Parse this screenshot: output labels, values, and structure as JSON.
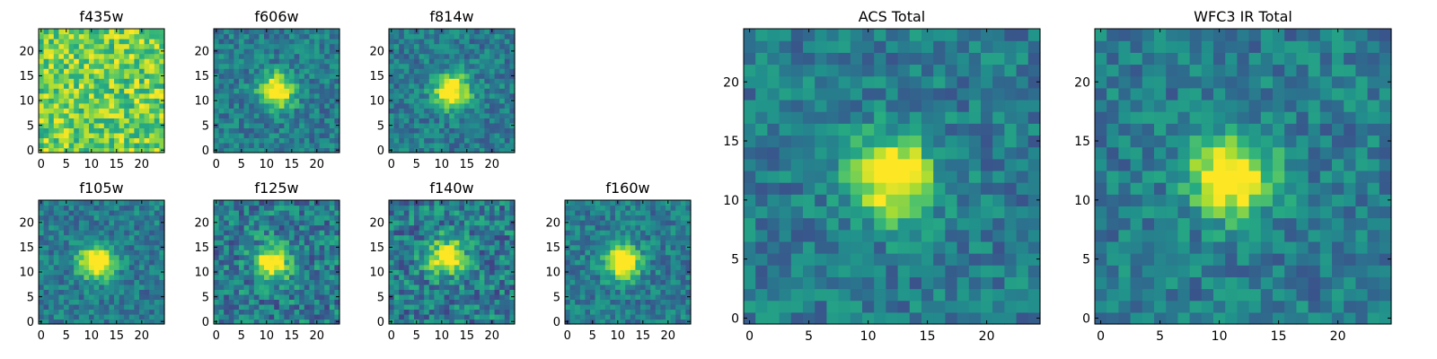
{
  "figure": {
    "colormap": "viridis",
    "colors": [
      "#440154",
      "#3b528b",
      "#21918c",
      "#5ec962",
      "#fde725"
    ],
    "frame_color": "#000000"
  },
  "chart_data": [
    {
      "type": "heatmap",
      "title": "f435w",
      "grid_size": 25,
      "xlim": [
        0,
        24
      ],
      "ylim": [
        0,
        24
      ],
      "xticks": [
        "0",
        "5",
        "10",
        "15",
        "20"
      ],
      "yticks": [
        "0",
        "5",
        "10",
        "15",
        "20"
      ],
      "grid": false,
      "source_center": null,
      "noise_level": "high",
      "note_visible": "mostly yellow-green noise"
    },
    {
      "type": "heatmap",
      "title": "f606w",
      "grid_size": 25,
      "xlim": [
        0,
        24
      ],
      "ylim": [
        0,
        24
      ],
      "xticks": [
        "0",
        "5",
        "10",
        "15",
        "20"
      ],
      "yticks": [
        "0",
        "5",
        "10",
        "15",
        "20"
      ],
      "grid": false,
      "source_center": [
        12,
        12
      ],
      "noise_level": "medium"
    },
    {
      "type": "heatmap",
      "title": "f814w",
      "grid_size": 25,
      "xlim": [
        0,
        24
      ],
      "ylim": [
        0,
        24
      ],
      "xticks": [
        "0",
        "5",
        "10",
        "15",
        "20"
      ],
      "yticks": [
        "0",
        "5",
        "10",
        "15",
        "20"
      ],
      "grid": false,
      "source_center": [
        12,
        12
      ],
      "noise_level": "medium"
    },
    {
      "type": "heatmap",
      "title": "f105w",
      "grid_size": 25,
      "xlim": [
        0,
        24
      ],
      "ylim": [
        0,
        24
      ],
      "xticks": [
        "0",
        "5",
        "10",
        "15",
        "20"
      ],
      "yticks": [
        "0",
        "5",
        "10",
        "15",
        "20"
      ],
      "grid": false,
      "source_center": [
        11,
        12
      ],
      "noise_level": "medium"
    },
    {
      "type": "heatmap",
      "title": "f125w",
      "grid_size": 25,
      "xlim": [
        0,
        24
      ],
      "ylim": [
        0,
        24
      ],
      "xticks": [
        "0",
        "5",
        "10",
        "15",
        "20"
      ],
      "yticks": [
        "0",
        "5",
        "10",
        "15",
        "20"
      ],
      "grid": false,
      "source_center": [
        11,
        12
      ],
      "noise_level": "high"
    },
    {
      "type": "heatmap",
      "title": "f140w",
      "grid_size": 25,
      "xlim": [
        0,
        24
      ],
      "ylim": [
        0,
        24
      ],
      "xticks": [
        "0",
        "5",
        "10",
        "15",
        "20"
      ],
      "yticks": [
        "0",
        "5",
        "10",
        "15",
        "20"
      ],
      "grid": false,
      "source_center": [
        11,
        13
      ],
      "noise_level": "high"
    },
    {
      "type": "heatmap",
      "title": "f160w",
      "grid_size": 25,
      "xlim": [
        0,
        24
      ],
      "ylim": [
        0,
        24
      ],
      "xticks": [
        "0",
        "5",
        "10",
        "15",
        "20"
      ],
      "yticks": [
        "0",
        "5",
        "10",
        "15",
        "20"
      ],
      "grid": false,
      "source_center": [
        11,
        12
      ],
      "noise_level": "medium"
    },
    {
      "type": "heatmap",
      "title": "ACS Total",
      "grid_size": 25,
      "xlim": [
        0,
        24
      ],
      "ylim": [
        0,
        24
      ],
      "xticks": [
        "0",
        "5",
        "10",
        "15",
        "20"
      ],
      "yticks": [
        "0",
        "5",
        "10",
        "15",
        "20"
      ],
      "grid": false,
      "source_center": [
        12,
        12
      ],
      "noise_level": "medium"
    },
    {
      "type": "heatmap",
      "title": "WFC3 IR Total",
      "grid_size": 25,
      "xlim": [
        0,
        24
      ],
      "ylim": [
        0,
        24
      ],
      "xticks": [
        "0",
        "5",
        "10",
        "15",
        "20"
      ],
      "yticks": [
        "0",
        "5",
        "10",
        "15",
        "20"
      ],
      "grid": false,
      "source_center": [
        11,
        12
      ],
      "noise_level": "medium"
    }
  ]
}
